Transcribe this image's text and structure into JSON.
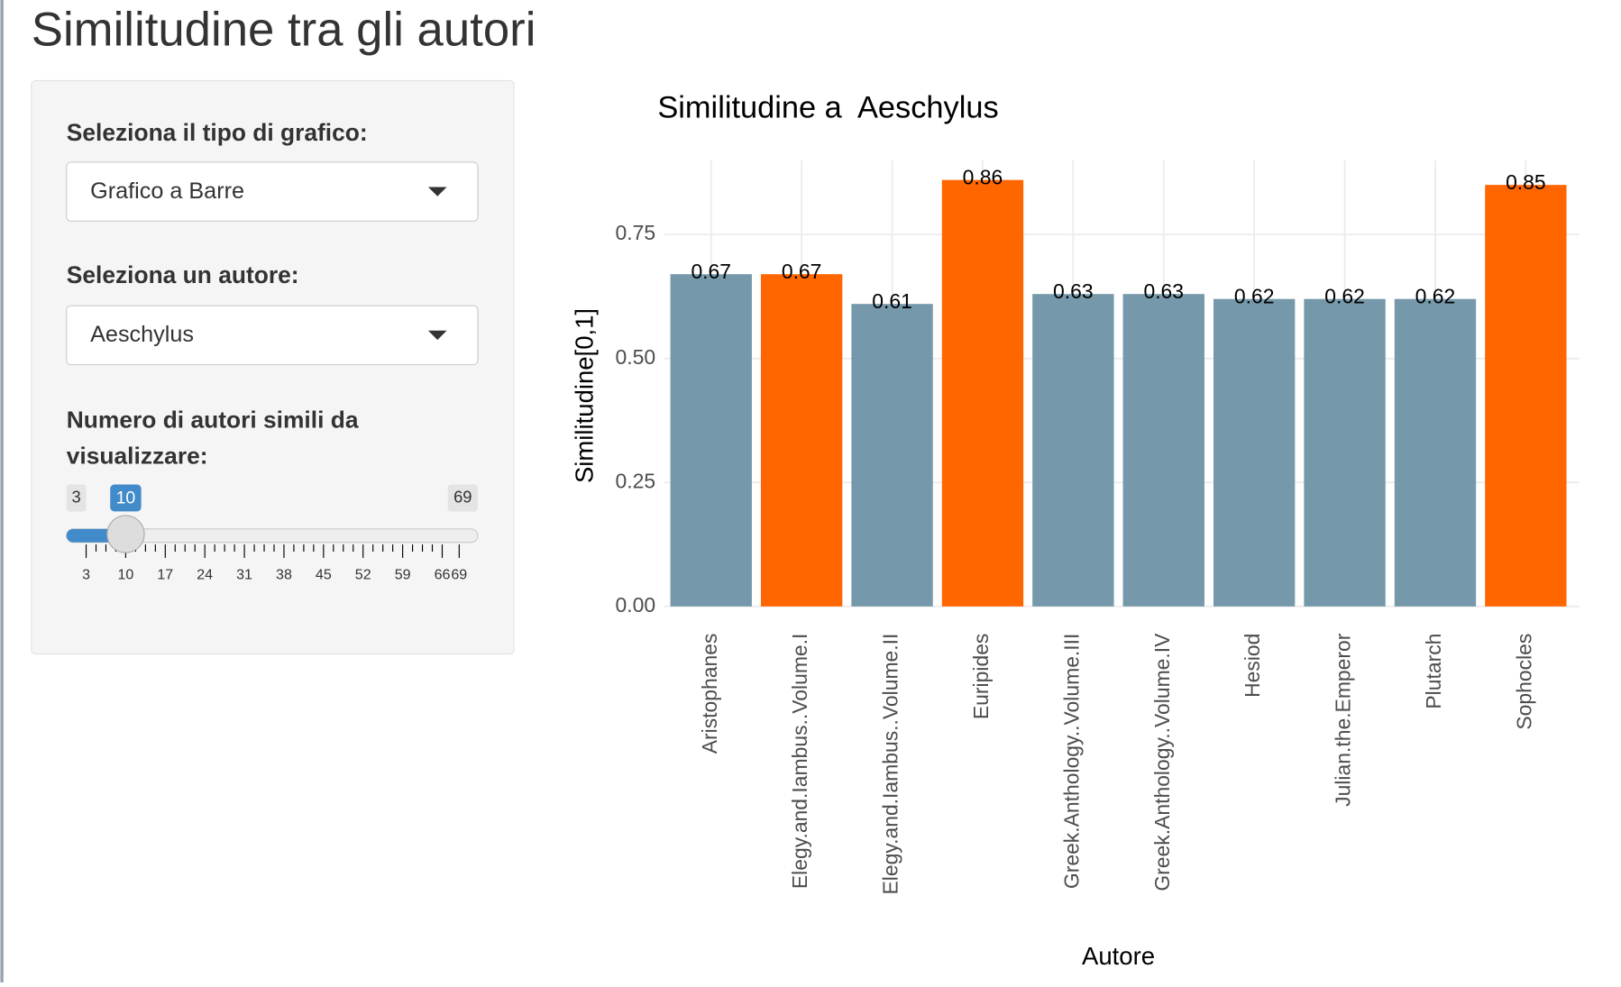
{
  "header": {
    "title": "Similitudine tra gli autori"
  },
  "sidebar": {
    "chart_type": {
      "label": "Seleziona il tipo di grafico:",
      "selected": "Grafico a Barre"
    },
    "author": {
      "label": "Seleziona un autore:",
      "selected": "Aeschylus"
    },
    "count": {
      "label": "Numero di autori simili da visualizzare:",
      "min": 3,
      "max": 69,
      "value": 10,
      "ticks": [
        3,
        10,
        17,
        24,
        31,
        38,
        45,
        52,
        59,
        66,
        69
      ]
    }
  },
  "chart_data": {
    "type": "bar",
    "title": "Similitudine a  Aeschylus",
    "x_label": "Autore",
    "y_label": "Similitudine[0,1]",
    "categories": [
      "Aristophanes",
      "Elegy.and.Iambus..Volume.I",
      "Elegy.and.Iambus..Volume.II",
      "Euripides",
      "Greek.Anthology..Volume.III",
      "Greek.Anthology..Volume.IV",
      "Hesiod",
      "Julian.the.Emperor",
      "Plutarch",
      "Sophocles"
    ],
    "values": [
      0.67,
      0.67,
      0.61,
      0.86,
      0.63,
      0.63,
      0.62,
      0.62,
      0.62,
      0.85
    ],
    "colors": [
      "#7598aa",
      "#ff6600",
      "#7598aa",
      "#ff6600",
      "#7598aa",
      "#7598aa",
      "#7598aa",
      "#7598aa",
      "#7598aa",
      "#ff6600"
    ],
    "ylim": [
      0,
      0.9
    ],
    "yticks": [
      {
        "value": 0,
        "label": "0.00"
      },
      {
        "value": 0.25,
        "label": "0.25"
      },
      {
        "value": 0.5,
        "label": "0.50"
      },
      {
        "value": 0.75,
        "label": "0.75"
      }
    ],
    "grid": true
  }
}
